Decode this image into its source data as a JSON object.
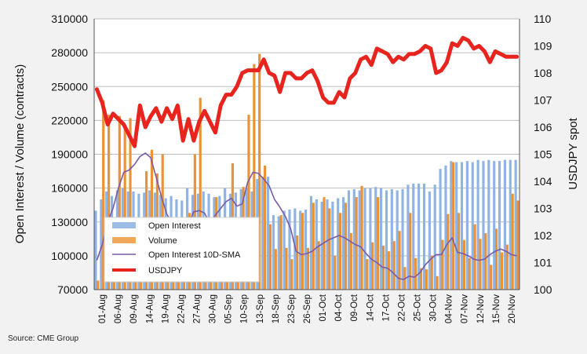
{
  "source_note": "Source: CME Group",
  "chart_data": {
    "type": "bar",
    "title": "",
    "ylabel": "Open Interest / Volume (contracts)",
    "y2label": "USDJPY spot",
    "ylim": [
      70000,
      310000
    ],
    "y2lim": [
      100,
      110
    ],
    "yticks": [
      "70000",
      "100000",
      "130000",
      "160000",
      "190000",
      "220000",
      "250000",
      "280000",
      "310000"
    ],
    "y2ticks": [
      "100",
      "101",
      "102",
      "103",
      "104",
      "105",
      "106",
      "107",
      "108",
      "109",
      "110"
    ],
    "x_tick_labels": [
      "01-Aug",
      "06-Aug",
      "09-Aug",
      "14-Aug",
      "19-Aug",
      "22-Aug",
      "27-Aug",
      "30-Aug",
      "05-Sep",
      "10-Sep",
      "13-Sep",
      "18-Sep",
      "23-Sep",
      "26-Sep",
      "01-Oct",
      "04-Oct",
      "09-Oct",
      "14-Oct",
      "17-Oct",
      "22-Oct",
      "25-Oct",
      "30-Oct",
      "04-Nov",
      "07-Nov",
      "12-Nov",
      "15-Nov",
      "20-Nov"
    ],
    "grid": true,
    "legend_position": "lower-left",
    "colors": {
      "open_interest": "#8fb4e3",
      "volume": "#e8923a",
      "sma": "#7a5aa6",
      "usdjpy": "#e8241e"
    },
    "series": [
      {
        "name": "Open Interest",
        "axis": "left",
        "values": [
          140000,
          150000,
          157000,
          153000,
          158000,
          160000,
          157000,
          157000,
          155000,
          156000,
          158000,
          156000,
          154000,
          151000,
          153000,
          150000,
          149000,
          160000,
          154000,
          155000,
          157000,
          155000,
          152000,
          153000,
          160000,
          155000,
          156000,
          159000,
          160000,
          157000,
          168000,
          170000,
          170000,
          136000,
          135000,
          140000,
          141000,
          142000,
          140000,
          141000,
          153000,
          150000,
          148000,
          150000,
          148000,
          151000,
          152000,
          158000,
          159000,
          158000,
          160000,
          160000,
          161000,
          160000,
          158000,
          159000,
          158000,
          159000,
          163000,
          164000,
          164000,
          164000,
          157000,
          163000,
          177000,
          180000,
          184000,
          183000,
          183000,
          184000,
          183000,
          185000,
          184000,
          185000,
          184000,
          184000,
          185000,
          185000,
          185000
        ]
      },
      {
        "name": "Volume",
        "axis": "left",
        "values": [
          78000,
          238000,
          225000,
          132000,
          224000,
          213000,
          222000,
          120000,
          115000,
          175000,
          194000,
          173000,
          190000,
          132000,
          101000,
          110000,
          112000,
          138000,
          190000,
          240000,
          101000,
          94000,
          152000,
          115000,
          128000,
          182000,
          110000,
          161000,
          225000,
          270000,
          279000,
          180000,
          128000,
          106000,
          136000,
          107000,
          97000,
          118000,
          138000,
          107000,
          147000,
          113000,
          152000,
          142000,
          100000,
          138000,
          147000,
          120000,
          152000,
          162000,
          97000,
          112000,
          152000,
          109000,
          104000,
          113000,
          122000,
          90000,
          138000,
          98000,
          89000,
          88000,
          100000,
          82000,
          114000,
          137000,
          183000,
          138000,
          114000,
          98000,
          128000,
          115000,
          120000,
          92000,
          124000,
          103000,
          110000,
          155000,
          149000
        ]
      },
      {
        "name": "Open Interest 10D-SMA",
        "axis": "left",
        "values": [
          96000,
          110000,
          130000,
          142000,
          160000,
          174000,
          176000,
          181000,
          188000,
          191000,
          187000,
          170000,
          152000,
          137000,
          128000,
          119000,
          120000,
          128000,
          139000,
          140000,
          138000,
          128000,
          136000,
          142000,
          148000,
          151000,
          144000,
          146000,
          165000,
          174000,
          173000,
          168000,
          162000,
          150000,
          143000,
          135000,
          124000,
          104000,
          101000,
          102000,
          104000,
          108000,
          111000,
          114000,
          116000,
          118000,
          116000,
          113000,
          110000,
          108000,
          102000,
          97000,
          94000,
          90000,
          89000,
          85000,
          80000,
          79000,
          82000,
          81000,
          85000,
          92000,
          97000,
          101000,
          101000,
          110000,
          116000,
          103000,
          102000,
          100000,
          97000,
          96000,
          97000,
          101000,
          104000,
          106000,
          104000,
          101000,
          100000
        ]
      },
      {
        "name": "USDJPY",
        "axis": "right",
        "values": [
          107.4,
          106.9,
          106.1,
          106.5,
          106.3,
          106.1,
          105.7,
          105.3,
          106.8,
          106.0,
          106.4,
          106.7,
          106.2,
          106.7,
          106.3,
          106.8,
          105.5,
          106.3,
          105.5,
          106.2,
          106.6,
          106.2,
          105.8,
          106.8,
          107.2,
          107.2,
          107.5,
          108.0,
          108.1,
          108.1,
          108.1,
          108.5,
          108.0,
          107.9,
          107.3,
          108.0,
          108.0,
          107.8,
          107.8,
          108.0,
          108.1,
          107.7,
          107.1,
          106.9,
          106.9,
          107.3,
          107.1,
          107.8,
          108.0,
          108.5,
          108.6,
          108.3,
          108.9,
          108.8,
          108.7,
          108.4,
          108.6,
          108.5,
          108.7,
          108.7,
          108.8,
          109.0,
          108.9,
          108.0,
          108.1,
          108.4,
          109.1,
          109.0,
          109.3,
          109.2,
          108.9,
          109.0,
          108.8,
          108.4,
          108.8,
          108.7,
          108.6,
          108.6,
          108.6
        ]
      }
    ],
    "legend": {
      "open_interest": "Open Interest",
      "volume": "Volume",
      "sma": "Open Interest 10D-SMA",
      "usdjpy": "USDJPY"
    }
  }
}
